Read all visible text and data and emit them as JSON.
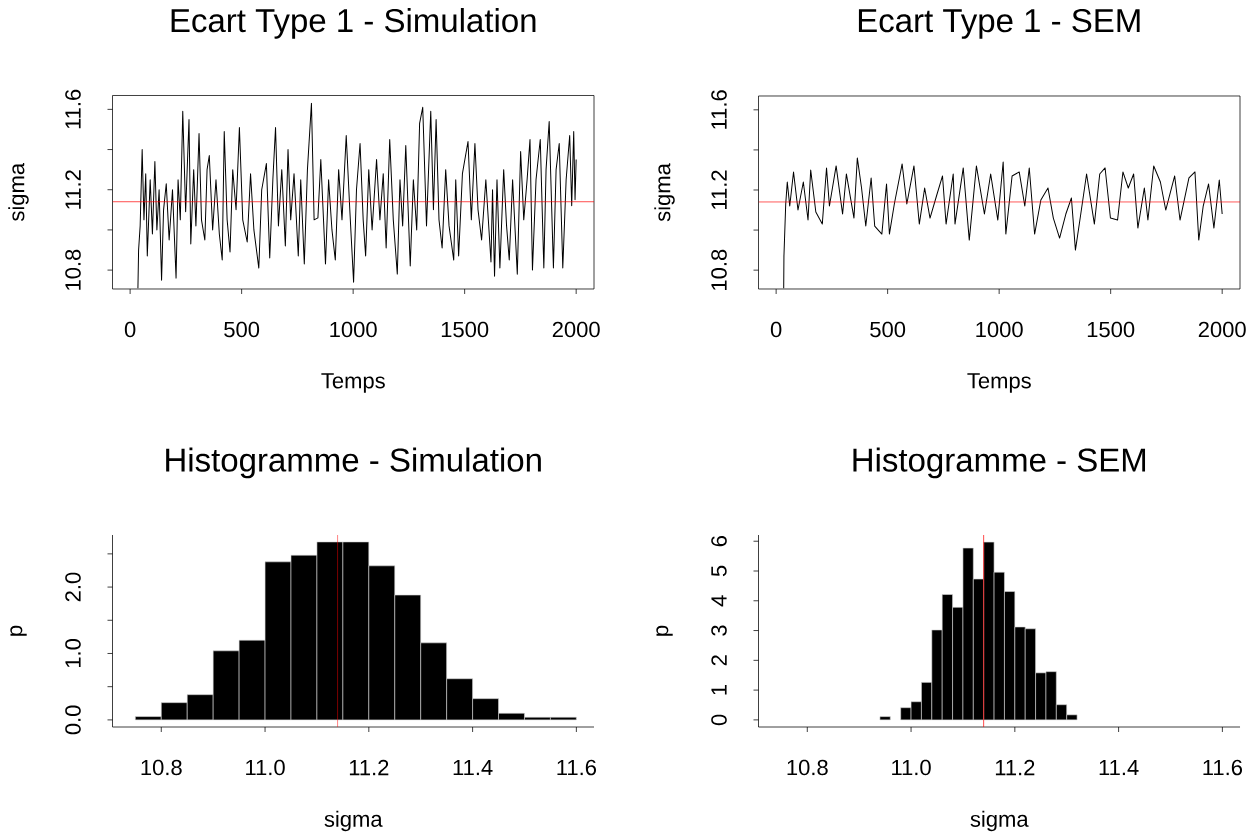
{
  "chart_data": [
    {
      "type": "line",
      "title": "Ecart Type 1 - Simulation",
      "xlabel": "Temps",
      "ylabel": "sigma",
      "color": "#000000",
      "xlim": [
        -79,
        2080
      ],
      "ylim": [
        10.706,
        11.669
      ],
      "xticks": [
        0,
        500,
        1000,
        1500,
        2000
      ],
      "yticks": [
        10.8,
        {
          "value": 11.0,
          "label": null
        },
        11.2,
        {
          "value": 11.4,
          "label": null
        },
        11.6
      ],
      "ref_lines": [
        {
          "axis": "y",
          "value": 11.14,
          "color": "#ff0000"
        }
      ],
      "x": [
        35,
        38,
        45,
        54,
        62,
        70,
        77,
        90,
        100,
        111,
        120,
        130,
        141,
        150,
        162,
        175,
        190,
        206,
        215,
        225,
        236,
        249,
        264,
        272,
        285,
        295,
        309,
        320,
        335,
        345,
        355,
        370,
        385,
        400,
        413,
        422,
        435,
        448,
        460,
        475,
        490,
        505,
        525,
        540,
        555,
        577,
        590,
        611,
        626,
        640,
        652,
        665,
        680,
        696,
        708,
        720,
        735,
        754,
        765,
        781,
        795,
        813,
        825,
        842,
        855,
        876,
        890,
        905,
        920,
        935,
        950,
        969,
        985,
        1002,
        1015,
        1031,
        1045,
        1056,
        1070,
        1085,
        1105,
        1120,
        1135,
        1148,
        1164,
        1180,
        1198,
        1210,
        1222,
        1236,
        1256,
        1270,
        1285,
        1298,
        1312,
        1329,
        1348,
        1360,
        1372,
        1385,
        1399,
        1415,
        1430,
        1451,
        1460,
        1473,
        1490,
        1515,
        1530,
        1546,
        1560,
        1576,
        1595,
        1618,
        1625,
        1634,
        1645,
        1658,
        1675,
        1688,
        1700,
        1715,
        1736,
        1751,
        1765,
        1780,
        1793,
        1804,
        1820,
        1839,
        1855,
        1865,
        1879,
        1898,
        1910,
        1924,
        1940,
        1955,
        1971,
        1980,
        1989,
        1995,
        2000
      ],
      "values": [
        10.71,
        10.9,
        11.02,
        11.4,
        11.05,
        11.28,
        10.87,
        11.25,
        10.98,
        11.34,
        11.0,
        11.2,
        10.75,
        11.1,
        11.23,
        10.95,
        11.2,
        10.76,
        11.25,
        11.05,
        11.59,
        11.09,
        11.55,
        10.93,
        11.3,
        11.02,
        11.48,
        11.05,
        10.95,
        11.3,
        11.37,
        11.0,
        11.25,
        10.98,
        10.85,
        11.49,
        11.05,
        10.89,
        11.3,
        11.1,
        11.51,
        11.05,
        10.94,
        11.28,
        11.0,
        10.81,
        11.2,
        11.33,
        10.86,
        11.25,
        11.51,
        11.02,
        11.3,
        10.92,
        11.4,
        11.05,
        11.28,
        10.87,
        11.25,
        10.83,
        11.3,
        11.63,
        11.05,
        11.06,
        11.35,
        10.83,
        11.25,
        11.0,
        10.85,
        11.3,
        11.05,
        11.47,
        11.1,
        10.74,
        11.2,
        11.43,
        11.05,
        10.87,
        11.3,
        11.0,
        11.35,
        11.05,
        11.28,
        10.91,
        11.45,
        11.05,
        10.78,
        11.25,
        11.02,
        11.42,
        10.82,
        11.25,
        11.0,
        11.53,
        11.61,
        11.02,
        11.59,
        11.1,
        11.55,
        11.05,
        10.91,
        11.3,
        11.02,
        10.85,
        11.25,
        10.87,
        11.28,
        11.44,
        11.05,
        11.43,
        11.1,
        10.95,
        11.25,
        10.84,
        11.2,
        10.77,
        11.25,
        10.81,
        11.3,
        11.02,
        10.85,
        11.25,
        10.78,
        11.39,
        11.05,
        11.25,
        11.45,
        10.8,
        11.25,
        11.45,
        10.81,
        11.3,
        11.54,
        10.81,
        11.3,
        11.43,
        10.81,
        11.25,
        11.47,
        11.12,
        11.49,
        11.15,
        11.35
      ]
    },
    {
      "type": "line",
      "title": "Ecart Type 1 - SEM",
      "xlabel": "Temps",
      "ylabel": "sigma",
      "color": "#000000",
      "xlim": [
        -79,
        2080
      ],
      "ylim": [
        10.706,
        11.669
      ],
      "xticks": [
        0,
        500,
        1000,
        1500,
        2000
      ],
      "yticks": [
        10.8,
        {
          "value": 11.0,
          "label": null
        },
        11.2,
        {
          "value": 11.4,
          "label": null
        },
        11.6
      ],
      "ref_lines": [
        {
          "axis": "y",
          "value": 11.14,
          "color": "#ff0000"
        }
      ],
      "x": [
        34,
        35,
        43,
        50,
        61,
        78,
        98,
        122,
        143,
        155,
        178,
        207,
        226,
        239,
        269,
        298,
        315,
        349,
        364,
        383,
        402,
        426,
        442,
        474,
        495,
        508,
        530,
        565,
        586,
        618,
        642,
        666,
        690,
        719,
        746,
        762,
        794,
        802,
        839,
        866,
        898,
        934,
        962,
        994,
        1018,
        1030,
        1058,
        1090,
        1115,
        1135,
        1159,
        1187,
        1219,
        1243,
        1271,
        1299,
        1324,
        1342,
        1366,
        1392,
        1427,
        1451,
        1475,
        1499,
        1531,
        1555,
        1579,
        1603,
        1622,
        1651,
        1667,
        1693,
        1723,
        1747,
        1787,
        1811,
        1851,
        1878,
        1895,
        1915,
        1939,
        1963,
        1987,
        2000
      ],
      "values": [
        10.71,
        10.87,
        11.13,
        11.24,
        11.12,
        11.29,
        11.1,
        11.24,
        11.05,
        11.3,
        11.09,
        11.03,
        11.31,
        11.12,
        11.32,
        11.08,
        11.28,
        11.06,
        11.36,
        11.21,
        11.02,
        11.26,
        11.02,
        10.98,
        11.23,
        10.98,
        11.13,
        11.33,
        11.13,
        11.32,
        11.03,
        11.21,
        11.06,
        11.17,
        11.27,
        11.03,
        11.28,
        11.03,
        11.31,
        10.95,
        11.32,
        11.08,
        11.28,
        11.05,
        11.34,
        10.98,
        11.27,
        11.29,
        11.12,
        11.31,
        10.98,
        11.15,
        11.21,
        11.06,
        10.96,
        11.08,
        11.16,
        10.9,
        11.08,
        11.28,
        11.03,
        11.28,
        11.31,
        11.06,
        11.05,
        11.29,
        11.21,
        11.28,
        11.01,
        11.21,
        11.05,
        11.32,
        11.24,
        11.1,
        11.27,
        11.05,
        11.26,
        11.29,
        10.95,
        11.12,
        11.23,
        11.01,
        11.25,
        11.08
      ]
    },
    {
      "type": "histogram",
      "title": "Histogramme - Simulation",
      "xlabel": "sigma",
      "ylabel": "p",
      "color": "#000000",
      "xlim": [
        10.706,
        11.634
      ],
      "ylim": [
        -0.107,
        2.784
      ],
      "xticks": [
        10.8,
        {
          "value": 11.0,
          "label": "11.0"
        },
        11.2,
        11.4,
        11.6
      ],
      "yticks": [
        {
          "value": 0,
          "label": "0.0"
        },
        {
          "value": 0.5,
          "label": null
        },
        {
          "value": 1,
          "label": "1.0"
        },
        {
          "value": 1.5,
          "label": null
        },
        {
          "value": 2,
          "label": "2.0"
        },
        {
          "value": 2.5,
          "label": null
        }
      ],
      "ref_lines": [
        {
          "axis": "x",
          "value": 11.14,
          "color": "#ff0000"
        }
      ],
      "bins": [
        10.75,
        10.8,
        10.85,
        10.9,
        10.95,
        11.0,
        11.05,
        11.1,
        11.15,
        11.2,
        11.25,
        11.3,
        11.35,
        11.4,
        11.45,
        11.5,
        11.55,
        11.6
      ],
      "values": [
        0.05,
        0.26,
        0.38,
        1.04,
        1.2,
        2.38,
        2.48,
        2.68,
        2.68,
        2.32,
        1.88,
        1.16,
        0.62,
        0.32,
        0.1,
        0.04,
        0.04
      ]
    },
    {
      "type": "histogram",
      "title": "Histogramme - SEM",
      "xlabel": "sigma",
      "ylabel": "p",
      "color": "#000000",
      "xlim": [
        10.706,
        11.634
      ],
      "ylim": [
        -0.239,
        6.209
      ],
      "xticks": [
        10.8,
        {
          "value": 11.0,
          "label": "11.0"
        },
        11.2,
        11.4,
        11.6
      ],
      "yticks": [
        0,
        1,
        2,
        3,
        4,
        5,
        6
      ],
      "ref_lines": [
        {
          "axis": "x",
          "value": 11.14,
          "color": "#ff0000"
        }
      ],
      "bins": [
        10.88,
        10.9,
        10.92,
        10.94,
        10.96,
        10.98,
        11.0,
        11.02,
        11.04,
        11.06,
        11.08,
        11.1,
        11.12,
        11.14,
        11.16,
        11.18,
        11.2,
        11.22,
        11.24,
        11.26,
        11.28,
        11.3,
        11.32,
        11.34,
        11.36
      ],
      "values": [
        0,
        0,
        0,
        0.11,
        0,
        0.41,
        0.61,
        1.26,
        3.02,
        4.21,
        3.78,
        5.77,
        4.73,
        5.97,
        4.96,
        4.31,
        3.12,
        3.06,
        1.58,
        1.62,
        0.51,
        0.17,
        0,
        0
      ]
    }
  ]
}
